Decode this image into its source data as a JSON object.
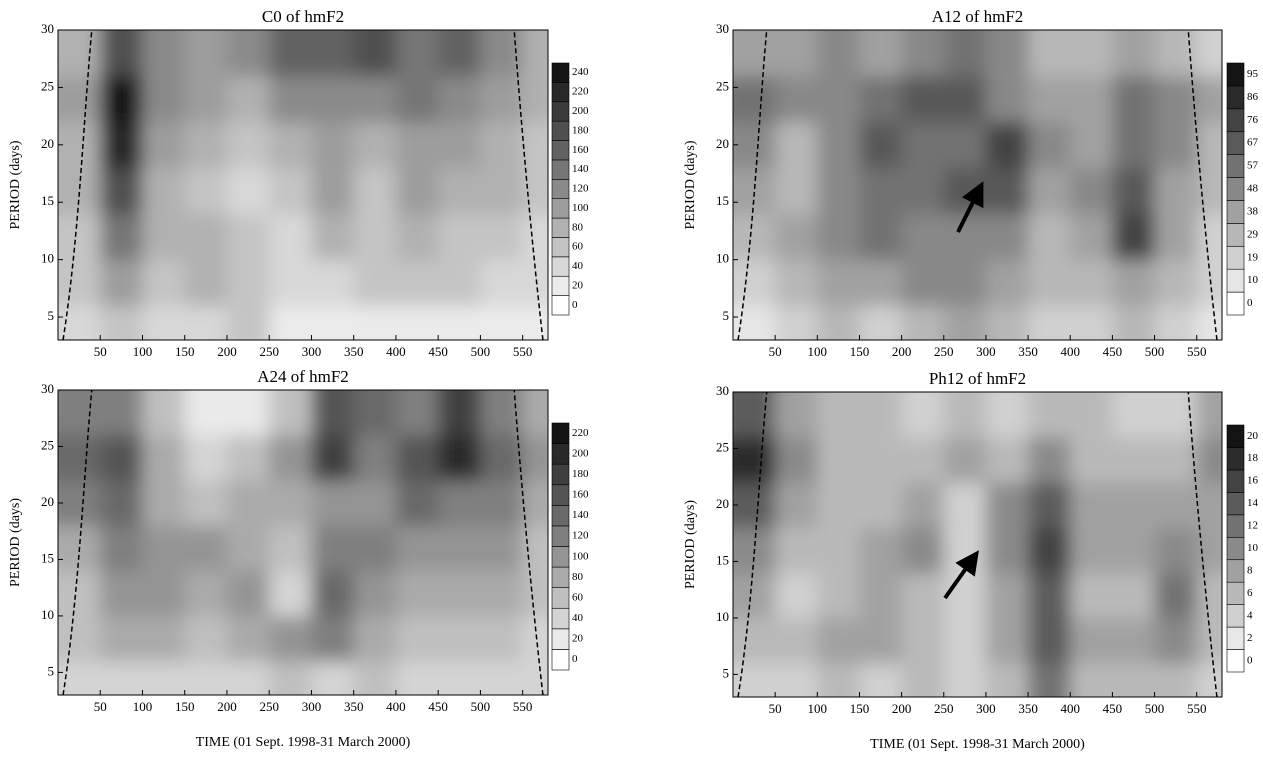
{
  "chart_data": [
    {
      "type": "contour",
      "title": "C0  of  hmF2",
      "y_label": "PERIOD  (days)",
      "x": [
        25,
        75,
        125,
        175,
        225,
        275,
        325,
        375,
        425,
        475,
        525,
        575
      ],
      "y": [
        4,
        8,
        12,
        16,
        20,
        24,
        28
      ],
      "z": [
        [
          40,
          60,
          40,
          40,
          60,
          20,
          20,
          20,
          20,
          20,
          20,
          20
        ],
        [
          60,
          100,
          60,
          80,
          60,
          40,
          40,
          60,
          60,
          60,
          40,
          40
        ],
        [
          60,
          140,
          80,
          80,
          60,
          40,
          80,
          60,
          80,
          60,
          60,
          40
        ],
        [
          80,
          180,
          80,
          60,
          40,
          60,
          100,
          60,
          100,
          80,
          80,
          60
        ],
        [
          80,
          220,
          100,
          80,
          60,
          80,
          100,
          80,
          100,
          100,
          80,
          60
        ],
        [
          100,
          240,
          120,
          100,
          80,
          120,
          120,
          120,
          140,
          120,
          100,
          80
        ],
        [
          80,
          180,
          120,
          100,
          120,
          160,
          160,
          180,
          140,
          160,
          120,
          80
        ]
      ],
      "xlim": [
        0,
        580
      ],
      "ylim": [
        3,
        30
      ],
      "xticks": [
        50,
        100,
        150,
        200,
        250,
        300,
        350,
        400,
        450,
        500,
        550
      ],
      "yticks": [
        5,
        10,
        15,
        20,
        25,
        30
      ],
      "levels": [
        0,
        20,
        40,
        60,
        80,
        100,
        120,
        140,
        160,
        180,
        200,
        220,
        240
      ]
    },
    {
      "type": "contour",
      "title": "A12  of  hmF2",
      "y_label": "PERIOD  (days)",
      "x": [
        25,
        75,
        125,
        175,
        225,
        275,
        325,
        375,
        425,
        475,
        525,
        575
      ],
      "y": [
        4,
        8,
        12,
        16,
        20,
        24,
        28
      ],
      "z": [
        [
          10,
          19,
          29,
          19,
          29,
          38,
          29,
          19,
          19,
          29,
          19,
          10
        ],
        [
          19,
          29,
          38,
          38,
          48,
          48,
          38,
          29,
          29,
          38,
          29,
          19
        ],
        [
          29,
          38,
          48,
          57,
          48,
          48,
          48,
          29,
          38,
          76,
          38,
          19
        ],
        [
          38,
          29,
          48,
          57,
          57,
          67,
          67,
          38,
          48,
          67,
          38,
          29
        ],
        [
          48,
          29,
          48,
          67,
          57,
          57,
          76,
          48,
          38,
          57,
          48,
          29
        ],
        [
          57,
          48,
          48,
          57,
          67,
          67,
          48,
          38,
          38,
          57,
          48,
          38
        ],
        [
          38,
          38,
          48,
          38,
          48,
          57,
          48,
          29,
          29,
          38,
          29,
          19
        ]
      ],
      "xlim": [
        0,
        580
      ],
      "ylim": [
        3,
        30
      ],
      "xticks": [
        50,
        100,
        150,
        200,
        250,
        300,
        350,
        400,
        450,
        500,
        550
      ],
      "yticks": [
        5,
        10,
        15,
        20,
        25,
        30
      ],
      "levels": [
        0,
        10,
        19,
        29,
        38,
        48,
        57,
        67,
        76,
        86,
        95
      ]
    },
    {
      "type": "contour",
      "title": "A24  of  hmF2",
      "y_label": "PERIOD  (days)",
      "x_label": "TIME  (01 Sept. 1998-31 March 2000)",
      "x": [
        25,
        75,
        125,
        175,
        225,
        275,
        325,
        375,
        425,
        475,
        525,
        575
      ],
      "y": [
        4,
        8,
        12,
        16,
        20,
        24,
        28
      ],
      "z": [
        [
          40,
          40,
          40,
          40,
          40,
          60,
          40,
          60,
          40,
          40,
          40,
          40
        ],
        [
          60,
          80,
          80,
          60,
          80,
          100,
          120,
          80,
          60,
          60,
          60,
          40
        ],
        [
          60,
          100,
          100,
          80,
          100,
          40,
          140,
          100,
          80,
          80,
          80,
          60
        ],
        [
          80,
          120,
          100,
          100,
          80,
          60,
          120,
          120,
          100,
          100,
          100,
          60
        ],
        [
          120,
          140,
          80,
          60,
          80,
          80,
          100,
          100,
          140,
          120,
          120,
          80
        ],
        [
          140,
          160,
          80,
          40,
          60,
          100,
          180,
          120,
          160,
          200,
          140,
          100
        ],
        [
          120,
          120,
          60,
          20,
          20,
          60,
          160,
          140,
          120,
          180,
          120,
          80
        ]
      ],
      "xlim": [
        0,
        580
      ],
      "ylim": [
        3,
        30
      ],
      "xticks": [
        50,
        100,
        150,
        200,
        250,
        300,
        350,
        400,
        450,
        500,
        550
      ],
      "yticks": [
        5,
        10,
        15,
        20,
        25,
        30
      ],
      "levels": [
        0,
        20,
        40,
        60,
        80,
        100,
        120,
        140,
        160,
        180,
        200,
        220
      ]
    },
    {
      "type": "contour",
      "title": "Ph12  of  hmF2",
      "y_label": "PERIOD  (days)",
      "x_label": "TIME  (01 Sept. 1998-31 March 2000)",
      "x": [
        25,
        75,
        125,
        175,
        225,
        275,
        325,
        375,
        425,
        475,
        525,
        575
      ],
      "y": [
        4,
        8,
        12,
        16,
        20,
        24,
        28
      ],
      "z": [
        [
          4,
          4,
          6,
          4,
          6,
          4,
          6,
          12,
          6,
          6,
          6,
          4
        ],
        [
          6,
          6,
          8,
          8,
          6,
          4,
          8,
          14,
          8,
          8,
          10,
          6
        ],
        [
          8,
          4,
          6,
          8,
          6,
          4,
          8,
          14,
          6,
          6,
          12,
          6
        ],
        [
          10,
          6,
          6,
          8,
          10,
          4,
          10,
          16,
          8,
          8,
          10,
          8
        ],
        [
          14,
          8,
          6,
          6,
          8,
          4,
          10,
          14,
          8,
          8,
          8,
          8
        ],
        [
          18,
          10,
          6,
          6,
          6,
          8,
          6,
          10,
          6,
          6,
          6,
          10
        ],
        [
          14,
          8,
          6,
          6,
          4,
          6,
          4,
          6,
          6,
          4,
          4,
          8
        ]
      ],
      "xlim": [
        0,
        580
      ],
      "ylim": [
        3,
        30
      ],
      "xticks": [
        50,
        100,
        150,
        200,
        250,
        300,
        350,
        400,
        450,
        500,
        550
      ],
      "yticks": [
        5,
        10,
        15,
        20,
        25,
        30
      ],
      "levels": [
        0,
        2,
        4,
        6,
        8,
        10,
        12,
        14,
        16,
        18,
        20
      ]
    }
  ]
}
